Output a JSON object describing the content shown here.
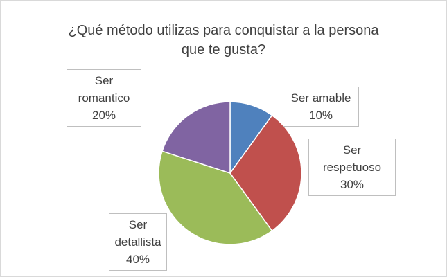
{
  "chart_data": {
    "type": "pie",
    "title": "¿Qué método utilizas para conquistar a la persona que te gusta?",
    "categories": [
      "Ser amable",
      "Ser respetuoso",
      "Ser detallista",
      "Ser romantico"
    ],
    "values": [
      10,
      30,
      40,
      20
    ],
    "value_labels": [
      "10%",
      "30%",
      "40%",
      "20%"
    ],
    "colors": [
      "#4f81bd",
      "#c0504d",
      "#9bbb59",
      "#8064a2"
    ]
  }
}
